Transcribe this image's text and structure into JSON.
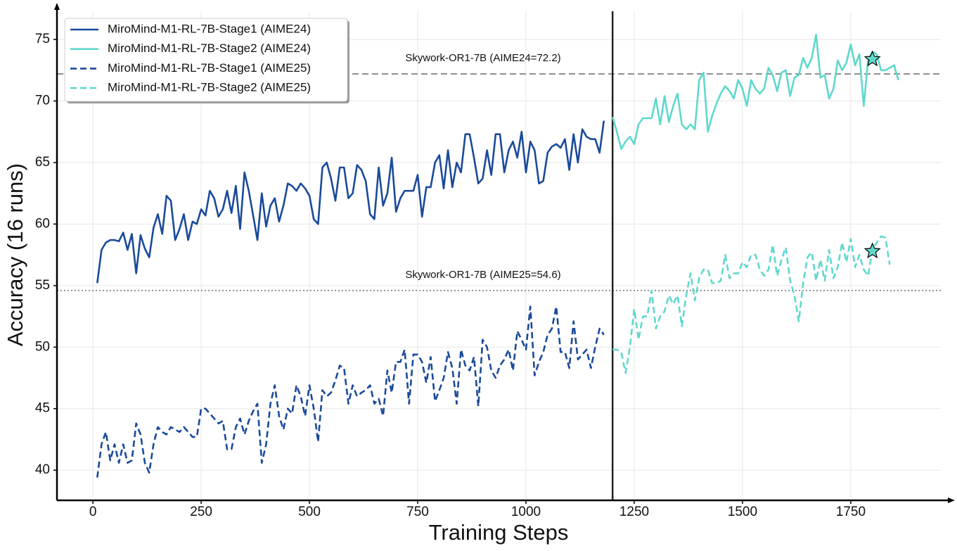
{
  "chart_data": {
    "type": "line",
    "xlabel": "Training Steps",
    "ylabel": "Accuracy (16 runs)",
    "xlim": [
      -83,
      1958
    ],
    "ylim": [
      37.55,
      77.75
    ],
    "xticks": [
      0,
      250,
      500,
      750,
      1000,
      1250,
      1500,
      1750
    ],
    "yticks": [
      40,
      45,
      50,
      55,
      60,
      65,
      70,
      75
    ],
    "grid": true,
    "legend": "upper left",
    "series": [
      {
        "name": "MiroMind-M1-RL-7B-Stage1 (AIME24)",
        "color": "#1a4a9a",
        "linestyle": "solid",
        "x": [
          10,
          20,
          30,
          40,
          50,
          60,
          70,
          80,
          90,
          100,
          110,
          120,
          130,
          140,
          150,
          160,
          170,
          180,
          190,
          200,
          210,
          220,
          230,
          240,
          250,
          260,
          270,
          280,
          290,
          300,
          310,
          320,
          330,
          340,
          350,
          360,
          370,
          380,
          390,
          400,
          410,
          420,
          430,
          440,
          450,
          460,
          470,
          480,
          490,
          500,
          510,
          520,
          530,
          540,
          550,
          560,
          570,
          580,
          590,
          600,
          610,
          620,
          630,
          640,
          650,
          660,
          670,
          680,
          690,
          700,
          710,
          720,
          730,
          740,
          750,
          760,
          770,
          780,
          790,
          800,
          810,
          820,
          830,
          840,
          850,
          860,
          870,
          880,
          890,
          900,
          910,
          920,
          930,
          940,
          950,
          960,
          970,
          980,
          990,
          1000,
          1010,
          1020,
          1030,
          1040,
          1050,
          1060,
          1070,
          1080,
          1090,
          1100,
          1110,
          1120,
          1130,
          1140,
          1150,
          1160,
          1170,
          1180
        ],
        "values": [
          55.2,
          57.9,
          58.5,
          58.7,
          58.7,
          58.6,
          59.3,
          57.9,
          59.2,
          56.0,
          59.1,
          58.0,
          57.3,
          59.7,
          60.8,
          59.2,
          62.3,
          61.9,
          58.7,
          59.6,
          60.8,
          58.7,
          60.2,
          60.0,
          61.2,
          60.7,
          62.7,
          62.1,
          60.6,
          61.2,
          62.7,
          60.9,
          63.1,
          59.6,
          64.2,
          62.7,
          60.7,
          58.7,
          62.5,
          59.8,
          61.5,
          62.1,
          60.2,
          61.5,
          63.3,
          63.1,
          62.7,
          63.3,
          62.9,
          62.3,
          60.4,
          60.0,
          64.6,
          65.0,
          63.7,
          61.9,
          64.6,
          64.6,
          62.1,
          62.5,
          64.8,
          64.4,
          63.5,
          60.8,
          60.4,
          64.6,
          61.5,
          62.5,
          65.4,
          61.0,
          62.1,
          62.7,
          62.7,
          62.7,
          64.0,
          60.6,
          63.0,
          63.0,
          65.0,
          65.6,
          62.9,
          66.0,
          63.0,
          65.0,
          64.2,
          67.3,
          67.3,
          65.4,
          63.3,
          63.7,
          66.0,
          64.0,
          67.3,
          67.3,
          64.2,
          66.0,
          66.7,
          65.4,
          67.5,
          64.2,
          66.7,
          66.0,
          63.3,
          63.5,
          65.8,
          66.3,
          66.5,
          66.2,
          66.9,
          64.4,
          67.3,
          65.0,
          67.7,
          67.1,
          66.9,
          66.9,
          65.8,
          68.4
        ]
      },
      {
        "name": "MiroMind-M1-RL-7B-Stage2 (AIME24)",
        "color": "#5fd8cc",
        "linestyle": "solid",
        "x": [
          1200,
          1210,
          1220,
          1230,
          1240,
          1250,
          1260,
          1270,
          1280,
          1290,
          1300,
          1310,
          1320,
          1330,
          1340,
          1350,
          1360,
          1370,
          1380,
          1390,
          1400,
          1410,
          1420,
          1430,
          1440,
          1450,
          1460,
          1470,
          1480,
          1490,
          1500,
          1510,
          1520,
          1530,
          1540,
          1550,
          1560,
          1570,
          1580,
          1590,
          1600,
          1610,
          1620,
          1630,
          1640,
          1650,
          1660,
          1670,
          1680,
          1690,
          1700,
          1710,
          1720,
          1730,
          1740,
          1750,
          1760,
          1770,
          1780,
          1790,
          1800,
          1810,
          1820,
          1830,
          1840,
          1850,
          1860
        ],
        "values": [
          68.7,
          67.5,
          66.1,
          66.7,
          67.1,
          66.5,
          68.1,
          68.6,
          68.6,
          68.6,
          70.2,
          68.1,
          70.4,
          68.3,
          69.6,
          70.6,
          68.1,
          67.7,
          68.1,
          67.7,
          71.7,
          72.3,
          67.5,
          68.8,
          69.8,
          70.6,
          71.2,
          70.8,
          70.2,
          71.7,
          71.0,
          69.6,
          71.7,
          71.0,
          70.6,
          71.0,
          72.7,
          72.1,
          70.8,
          72.3,
          72.5,
          70.4,
          71.9,
          72.1,
          73.5,
          72.7,
          73.5,
          75.4,
          71.9,
          72.1,
          70.2,
          71.0,
          73.3,
          72.5,
          73.1,
          74.6,
          72.9,
          73.8,
          69.6,
          73.3,
          74.0,
          73.8,
          72.5,
          72.5,
          72.7,
          72.9,
          71.7
        ]
      },
      {
        "name": "MiroMind-M1-RL-7B-Stage1 (AIME25)",
        "color": "#1a4a9a",
        "linestyle": "dashed",
        "x": [
          10,
          20,
          30,
          40,
          50,
          60,
          70,
          80,
          90,
          100,
          110,
          120,
          130,
          140,
          150,
          160,
          170,
          180,
          190,
          200,
          210,
          220,
          230,
          240,
          250,
          260,
          270,
          280,
          290,
          300,
          310,
          320,
          330,
          340,
          350,
          360,
          370,
          380,
          390,
          400,
          410,
          420,
          430,
          440,
          450,
          460,
          470,
          480,
          490,
          500,
          510,
          520,
          530,
          540,
          550,
          560,
          570,
          580,
          590,
          600,
          610,
          620,
          630,
          640,
          650,
          660,
          670,
          680,
          690,
          700,
          710,
          720,
          730,
          740,
          750,
          760,
          770,
          780,
          790,
          800,
          810,
          820,
          830,
          840,
          850,
          860,
          870,
          880,
          890,
          900,
          910,
          920,
          930,
          940,
          950,
          960,
          970,
          980,
          990,
          1000,
          1010,
          1020,
          1030,
          1040,
          1050,
          1060,
          1070,
          1080,
          1090,
          1100,
          1110,
          1120,
          1130,
          1140,
          1150,
          1160,
          1170,
          1180
        ],
        "values": [
          39.4,
          42.1,
          43.1,
          40.8,
          42.1,
          40.6,
          42.1,
          40.6,
          40.8,
          43.8,
          42.9,
          40.6,
          39.8,
          42.1,
          43.5,
          43.1,
          42.9,
          43.5,
          43.3,
          43.1,
          43.5,
          43.1,
          42.7,
          42.7,
          45.0,
          45.0,
          44.6,
          44.2,
          43.8,
          44.0,
          41.7,
          41.7,
          43.5,
          44.2,
          42.9,
          44.0,
          44.8,
          45.4,
          40.6,
          42.1,
          45.4,
          46.9,
          44.4,
          43.3,
          45.0,
          44.6,
          46.9,
          46.0,
          44.4,
          46.9,
          45.0,
          42.3,
          46.5,
          46.0,
          46.3,
          47.3,
          48.5,
          48.3,
          45.4,
          46.9,
          46.0,
          46.3,
          46.5,
          46.9,
          45.4,
          45.8,
          44.4,
          48.1,
          46.3,
          48.8,
          48.8,
          49.8,
          45.4,
          49.4,
          49.4,
          48.8,
          47.1,
          49.2,
          45.6,
          46.5,
          47.5,
          49.6,
          48.3,
          45.4,
          49.8,
          48.5,
          48.1,
          49.2,
          45.2,
          50.6,
          50.0,
          48.1,
          47.5,
          48.5,
          49.0,
          49.8,
          48.1,
          51.3,
          50.6,
          49.8,
          53.3,
          47.7,
          48.8,
          49.6,
          51.0,
          51.5,
          53.3,
          49.6,
          49.6,
          48.3,
          52.1,
          49.0,
          49.4,
          49.8,
          48.3,
          50.0,
          51.5,
          51.0
        ]
      },
      {
        "name": "MiroMind-M1-RL-7B-Stage2 (AIME25)",
        "color": "#5fd8cc",
        "linestyle": "dashed",
        "x": [
          1200,
          1210,
          1220,
          1230,
          1240,
          1250,
          1260,
          1270,
          1280,
          1290,
          1300,
          1310,
          1320,
          1330,
          1340,
          1350,
          1360,
          1370,
          1380,
          1390,
          1400,
          1410,
          1420,
          1430,
          1440,
          1450,
          1460,
          1470,
          1480,
          1490,
          1500,
          1510,
          1520,
          1530,
          1540,
          1550,
          1560,
          1570,
          1580,
          1590,
          1600,
          1610,
          1620,
          1630,
          1640,
          1650,
          1660,
          1670,
          1680,
          1690,
          1700,
          1710,
          1720,
          1730,
          1740,
          1750,
          1760,
          1770,
          1780,
          1790,
          1800,
          1810,
          1820,
          1830,
          1840
        ],
        "values": [
          49.8,
          49.8,
          49.6,
          47.9,
          50.0,
          53.1,
          50.6,
          52.5,
          52.5,
          54.6,
          51.5,
          52.5,
          52.9,
          54.2,
          53.5,
          54.2,
          51.7,
          54.2,
          56.0,
          53.8,
          55.6,
          56.3,
          56.3,
          55.2,
          55.2,
          55.4,
          57.5,
          55.6,
          56.0,
          56.0,
          56.9,
          56.5,
          57.5,
          57.5,
          56.3,
          55.8,
          56.3,
          58.3,
          55.8,
          57.1,
          58.1,
          55.4,
          54.2,
          52.1,
          55.2,
          57.3,
          57.7,
          55.4,
          57.1,
          55.4,
          57.9,
          55.6,
          56.5,
          58.5,
          56.9,
          58.8,
          56.5,
          57.5,
          56.3,
          55.8,
          57.9,
          58.5,
          59.0,
          58.9,
          56.7
        ]
      }
    ],
    "reference_lines": [
      {
        "label": "Skywork-OR1-7B (AIME24=72.2)",
        "value": 72.2,
        "linestyle": "dashed",
        "color": "#888888"
      },
      {
        "label": "Skywork-OR1-7B (AIME25=54.6)",
        "value": 54.6,
        "linestyle": "dotted",
        "color": "#888888"
      }
    ],
    "vline": 1200,
    "markers": [
      {
        "x": 1800,
        "y": 73.4,
        "color": "#5fd8cc"
      },
      {
        "x": 1800,
        "y": 57.8,
        "color": "#5fd8cc"
      }
    ]
  }
}
